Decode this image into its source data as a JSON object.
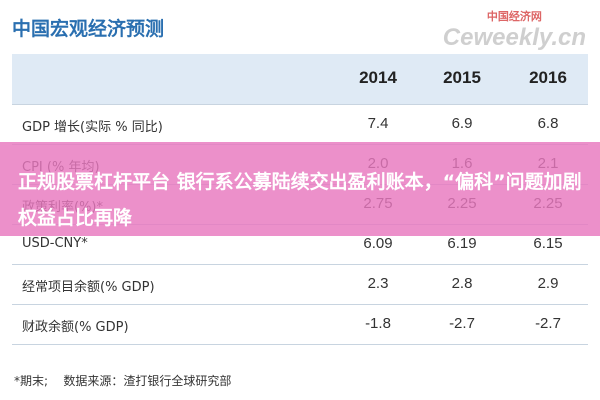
{
  "header": {
    "title": "中国宏观经济预测",
    "watermark": "中国经济网",
    "watermark_sub": "Ceweekly.cn"
  },
  "table": {
    "columns": [
      "2014",
      "2015",
      "2016"
    ],
    "rows": [
      [
        "GDP 增长(实际 % 同比)",
        "7.4",
        "6.9",
        "6.8"
      ],
      [
        "CPI (% 年均)",
        "2.0",
        "1.6",
        "2.1"
      ],
      [
        "政策利率(%)*",
        "2.75",
        "2.25",
        "2.25"
      ],
      [
        "USD-CNY*",
        "6.09",
        "6.19",
        "6.15"
      ],
      [
        "经常项目余额(% GDP)",
        "2.3",
        "2.8",
        "2.9"
      ],
      [
        "财政余额(% GDP)",
        "-1.8",
        "-2.7",
        "-2.7"
      ]
    ]
  },
  "footer": {
    "note": "*期末;",
    "source": "数据来源：渣打银行全球研究部"
  },
  "overlay": {
    "headline": "正规股票杠杆平台 银行系公募陆续交出盈利账本，“偏科”问题加剧权益占比再降"
  }
}
